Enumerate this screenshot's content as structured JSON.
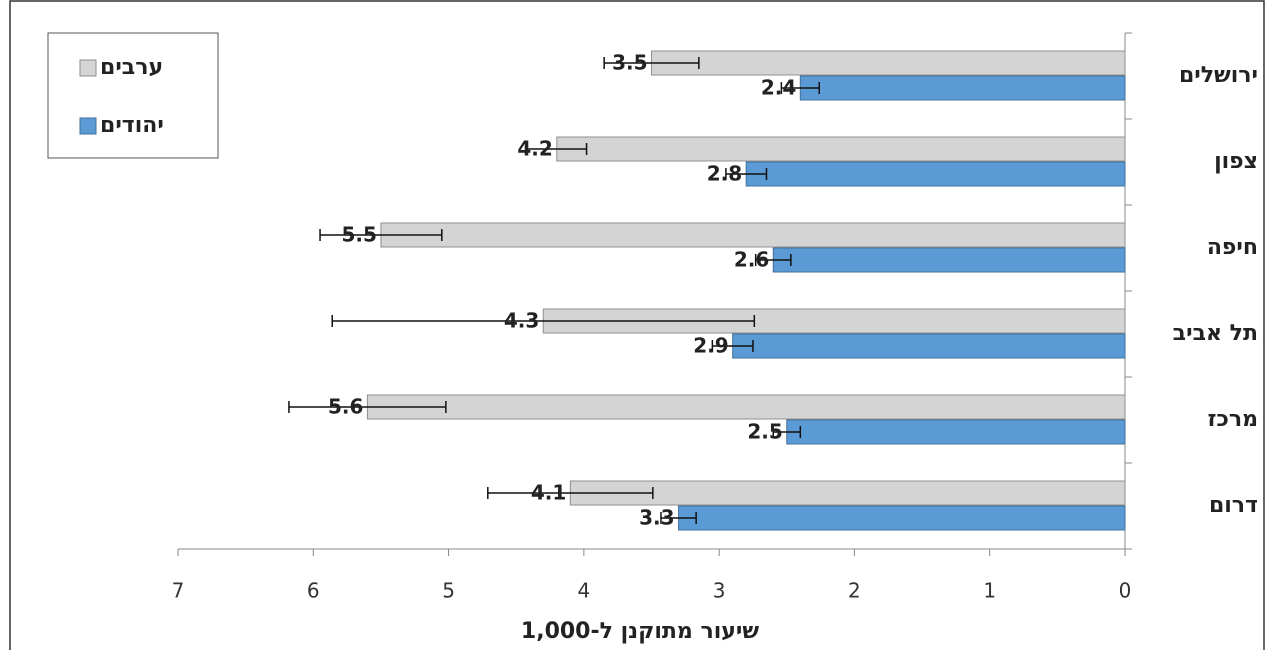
{
  "chart_data": {
    "type": "hbar",
    "x_title": "שיעור מתוקנן ל-1,000",
    "categories": [
      "ירושלים",
      "צפון",
      "חיפה",
      "תל אביב",
      "מרכז",
      "דרום"
    ],
    "series": [
      {
        "name": "ערבים",
        "color": "#d4d4d4",
        "values": [
          3.5,
          4.2,
          5.5,
          4.3,
          5.6,
          4.1
        ],
        "errors": [
          0.35,
          0.22,
          0.45,
          1.56,
          0.58,
          0.61
        ]
      },
      {
        "name": "יהודים",
        "color": "#5b9bd5",
        "values": [
          2.4,
          2.8,
          2.6,
          2.9,
          2.5,
          3.3
        ],
        "errors": [
          0.14,
          0.15,
          0.13,
          0.15,
          0.1,
          0.13
        ]
      }
    ],
    "xlim": [
      0,
      7
    ],
    "xticks": [
      0,
      1,
      2,
      3,
      4,
      5,
      6,
      7
    ],
    "x_inverted": true,
    "legend": "top-left"
  }
}
